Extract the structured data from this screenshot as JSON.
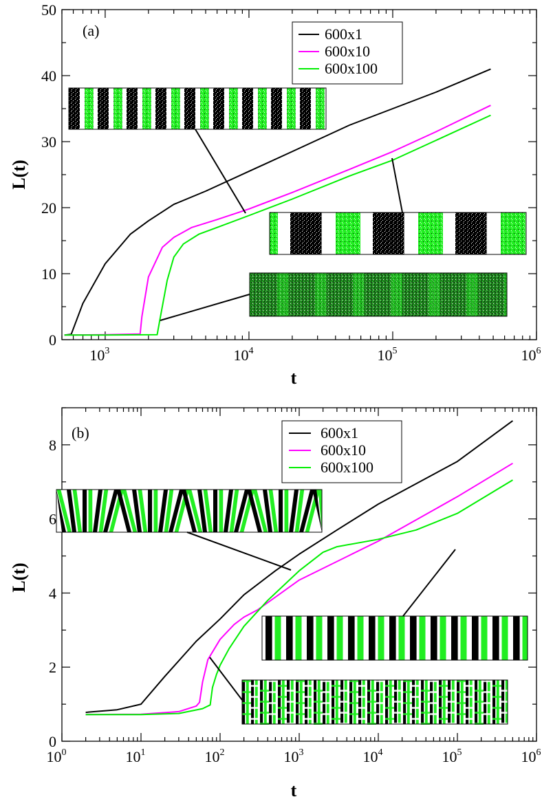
{
  "chart_data": [
    {
      "type": "line",
      "panel_label": "(a)",
      "xlabel": "t",
      "ylabel": "L(t)",
      "xscale": "log",
      "xlim": [
        500,
        1000000
      ],
      "ylim": [
        0,
        50
      ],
      "xticks": [
        {
          "base": "10",
          "exp": "3",
          "value": 1000
        },
        {
          "base": "10",
          "exp": "4",
          "value": 10000
        },
        {
          "base": "10",
          "exp": "5",
          "value": 100000
        },
        {
          "base": "10",
          "exp": "6",
          "value": 1000000
        }
      ],
      "yticks": [
        {
          "label": "0",
          "value": 0
        },
        {
          "label": "10",
          "value": 10
        },
        {
          "label": "20",
          "value": 20
        },
        {
          "label": "30",
          "value": 30
        },
        {
          "label": "40",
          "value": 40
        },
        {
          "label": "50",
          "value": 50
        }
      ],
      "legend": "top-center",
      "series": [
        {
          "name": "600x1",
          "color": "#000000",
          "x": [
            520,
            580,
            700,
            1000,
            1500,
            2000,
            3000,
            5000,
            10000,
            20000,
            50000,
            100000,
            200000,
            480000
          ],
          "y": [
            0.7,
            0.8,
            5.5,
            11.5,
            16,
            18,
            20.5,
            22.5,
            25.5,
            28.5,
            32.5,
            35,
            37.5,
            41
          ]
        },
        {
          "name": "600x10",
          "color": "#ff00ff",
          "x": [
            520,
            1000,
            1750,
            1800,
            2000,
            2500,
            3000,
            4000,
            6000,
            10000,
            20000,
            50000,
            100000,
            200000,
            480000
          ],
          "y": [
            0.7,
            0.75,
            0.85,
            3.5,
            9.5,
            14,
            15.5,
            17,
            18.2,
            19.8,
            22.3,
            25.8,
            28.5,
            31.5,
            35.5
          ]
        },
        {
          "name": "600x100",
          "color": "#00ee00",
          "x": [
            520,
            1000,
            2300,
            2400,
            2700,
            3000,
            3500,
            4500,
            6000,
            10000,
            20000,
            50000,
            100000,
            200000,
            480000
          ],
          "y": [
            0.7,
            0.7,
            0.75,
            3,
            9,
            12.5,
            14.5,
            16,
            17,
            18.8,
            21.3,
            24.8,
            27.2,
            30.2,
            34
          ]
        }
      ],
      "insets": [
        {
          "name": "inset-a-top",
          "style": "bw-bands",
          "period": 42,
          "phase": 0
        },
        {
          "name": "inset-a-right",
          "style": "bw-bands",
          "period": 120,
          "phase": 30
        },
        {
          "name": "inset-a-bottom",
          "style": "noisy-bands",
          "period": 55,
          "phase": 10
        }
      ]
    },
    {
      "type": "line",
      "panel_label": "(b)",
      "xlabel": "t",
      "ylabel": "L(t)",
      "xscale": "log",
      "xlim": [
        1,
        1000000
      ],
      "ylim": [
        0,
        9
      ],
      "xticks": [
        {
          "base": "10",
          "exp": "0",
          "value": 1
        },
        {
          "base": "10",
          "exp": "1",
          "value": 10
        },
        {
          "base": "10",
          "exp": "2",
          "value": 100
        },
        {
          "base": "10",
          "exp": "3",
          "value": 1000
        },
        {
          "base": "10",
          "exp": "4",
          "value": 10000
        },
        {
          "base": "10",
          "exp": "5",
          "value": 100000
        },
        {
          "base": "10",
          "exp": "6",
          "value": 1000000
        }
      ],
      "yticks": [
        {
          "label": "0",
          "value": 0
        },
        {
          "label": "2",
          "value": 2
        },
        {
          "label": "4",
          "value": 4
        },
        {
          "label": "6",
          "value": 6
        },
        {
          "label": "8",
          "value": 8
        }
      ],
      "legend": "top-center",
      "series": [
        {
          "name": "600x1",
          "color": "#000000",
          "x": [
            2,
            5,
            10,
            20,
            50,
            100,
            200,
            500,
            1000,
            3000,
            10000,
            100000,
            500000
          ],
          "y": [
            0.78,
            0.85,
            1.0,
            1.75,
            2.7,
            3.3,
            3.95,
            4.6,
            5.05,
            5.7,
            6.4,
            7.55,
            8.65
          ]
        },
        {
          "name": "600x10",
          "color": "#ff00ff",
          "x": [
            2,
            10,
            30,
            50,
            55,
            60,
            70,
            100,
            150,
            200,
            300,
            1000,
            10000,
            100000,
            500000
          ],
          "y": [
            0.72,
            0.73,
            0.8,
            0.95,
            1.05,
            1.6,
            2.2,
            2.75,
            3.15,
            3.35,
            3.55,
            4.35,
            5.4,
            6.6,
            7.5
          ]
        },
        {
          "name": "600x100",
          "color": "#00ee00",
          "x": [
            2,
            10,
            30,
            60,
            75,
            80,
            90,
            100,
            130,
            200,
            400,
            1000,
            2000,
            3000,
            10000,
            30000,
            100000,
            500000
          ],
          "y": [
            0.72,
            0.72,
            0.75,
            0.88,
            0.98,
            1.45,
            1.8,
            2.05,
            2.5,
            3.1,
            3.8,
            4.6,
            5.1,
            5.25,
            5.45,
            5.7,
            6.15,
            7.05
          ]
        }
      ],
      "insets": [
        {
          "name": "inset-b-top",
          "style": "tilted-stripes",
          "period": 19,
          "phase": 0
        },
        {
          "name": "inset-b-right",
          "style": "straight-stripes",
          "period": 30,
          "phase": 5
        },
        {
          "name": "inset-b-bottom",
          "style": "labyrinth",
          "period": 13,
          "phase": 0
        }
      ]
    }
  ]
}
